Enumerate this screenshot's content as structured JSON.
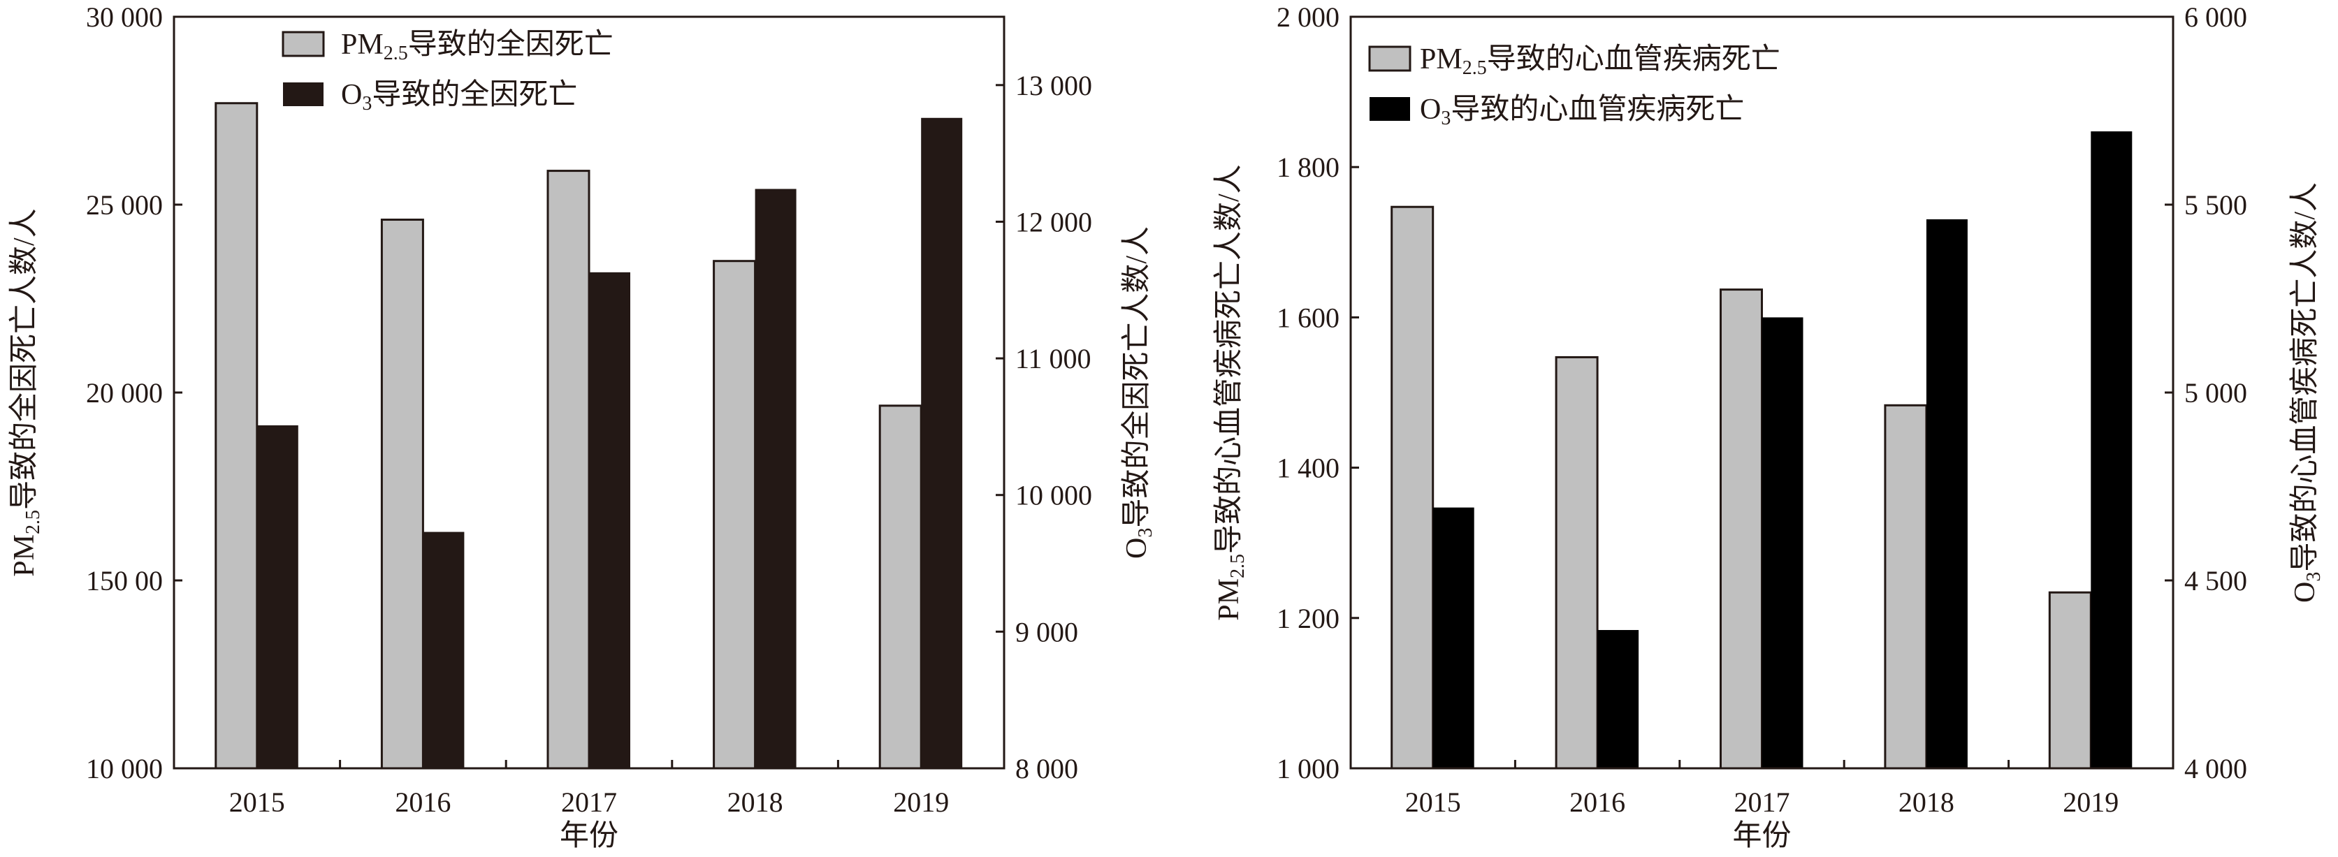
{
  "chart_data": [
    {
      "type": "bar",
      "categories": [
        "2015",
        "2016",
        "2017",
        "2018",
        "2019"
      ],
      "xlabel": "年份",
      "ylabel_left": {
        "prefix": "PM",
        "sub": "2.5",
        "suffix": "导致的全因死亡人数/人"
      },
      "ylabel_right": {
        "prefix": "O",
        "sub": "3",
        "suffix": "导致的全因死亡人数/人"
      },
      "ylim_left": [
        10000,
        30000
      ],
      "ylim_right": [
        8000,
        13500
      ],
      "yticks_left": [
        {
          "v": 10000,
          "label": "10 000"
        },
        {
          "v": 15000,
          "label": "150 00"
        },
        {
          "v": 20000,
          "label": "20 000"
        },
        {
          "v": 25000,
          "label": "25 000"
        },
        {
          "v": 30000,
          "label": "30 000"
        }
      ],
      "yticks_right": [
        {
          "v": 8000,
          "label": "8 000"
        },
        {
          "v": 9000,
          "label": "9 000"
        },
        {
          "v": 10000,
          "label": "10 000"
        },
        {
          "v": 11000,
          "label": "11 000"
        },
        {
          "v": 12000,
          "label": "12 000"
        },
        {
          "v": 13000,
          "label": "13 000"
        }
      ],
      "legend_placement": "top",
      "series": [
        {
          "name": {
            "prefix": "PM",
            "sub": "2.5",
            "suffix": "导致的全因死亡"
          },
          "axis": "left",
          "color": "#c0c0c0",
          "values": [
            27700,
            24600,
            25900,
            23500,
            19650
          ]
        },
        {
          "name": {
            "prefix": "O",
            "sub": "3",
            "suffix": "导致的全因死亡"
          },
          "axis": "right",
          "color": "#231815",
          "values": [
            10510,
            9730,
            11630,
            12240,
            12760
          ]
        }
      ]
    },
    {
      "type": "bar",
      "categories": [
        "2015",
        "2016",
        "2017",
        "2018",
        "2019"
      ],
      "xlabel": "年份",
      "ylabel_left": {
        "prefix": "PM",
        "sub": "2.5",
        "suffix": "导致的心血管疾病死亡人数/人"
      },
      "ylabel_right": {
        "prefix": "O",
        "sub": "3",
        "suffix": "导致的心血管疾病死亡人数/人"
      },
      "ylim_left": [
        1000,
        2000
      ],
      "ylim_right": [
        4000,
        6000
      ],
      "yticks_left": [
        {
          "v": 1000,
          "label": "1 000"
        },
        {
          "v": 1200,
          "label": "1 200"
        },
        {
          "v": 1400,
          "label": "1 400"
        },
        {
          "v": 1600,
          "label": "1 600"
        },
        {
          "v": 1800,
          "label": "1 800"
        },
        {
          "v": 2000,
          "label": "2 000"
        }
      ],
      "yticks_right": [
        {
          "v": 4000,
          "label": "4 000"
        },
        {
          "v": 4500,
          "label": "4 500"
        },
        {
          "v": 5000,
          "label": "5 000"
        },
        {
          "v": 5500,
          "label": "5 500"
        },
        {
          "v": 6000,
          "label": "6 000"
        }
      ],
      "legend_placement": "top-left",
      "series": [
        {
          "name": {
            "prefix": "PM",
            "sub": "2.5",
            "suffix": "导致的心血管疾病死亡"
          },
          "axis": "left",
          "color": "#c0c0c0",
          "values": [
            1747,
            1547,
            1637,
            1483,
            1234
          ]
        },
        {
          "name": {
            "prefix": "O",
            "sub": "3",
            "suffix": "导致的心血管疾病死亡"
          },
          "axis": "right",
          "color": "#000000",
          "values": [
            4694,
            4368,
            5200,
            5461,
            5695
          ]
        }
      ]
    }
  ]
}
